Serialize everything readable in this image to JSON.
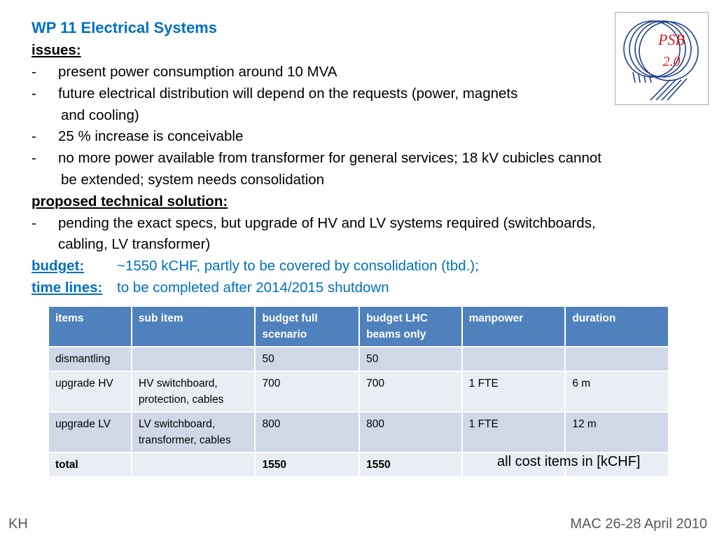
{
  "title": "WP 11 Electrical Systems",
  "issues_label": "issues:",
  "issues": [
    {
      "bullet": "-",
      "text": "present power consumption around 10 MVA"
    },
    {
      "bullet": "-",
      "text": "future electrical distribution will depend on the requests (power, magnets",
      "cont": "and cooling)"
    },
    {
      "bullet": "-",
      "text": "25 % increase is conceivable"
    },
    {
      "bullet": "-",
      "text": "no more power available from transformer for general services; 18 kV cubicles cannot",
      "cont": "be extended; system needs consolidation"
    }
  ],
  "solution_label": "proposed technical solution:",
  "solution": {
    "bullet": "-",
    "text": "pending the exact specs, but upgrade of HV and LV systems required (switchboards,",
    "cont": "cabling, LV transformer)"
  },
  "budget_label": "budget:",
  "budget_text": "~1550 kCHF, partly to be covered by consolidation (tbd.);",
  "timelines_label": "time lines:",
  "timelines_text": "to be completed after 2014/2015 shutdown",
  "logo": {
    "text1": "PSB",
    "text2": "2.0"
  },
  "table": {
    "headers": [
      "items",
      "sub item",
      "budget full scenario",
      "budget LHC beams only",
      "manpower",
      "duration"
    ],
    "rows": [
      [
        "dismantling",
        "",
        "50",
        "50",
        "",
        ""
      ],
      [
        "upgrade HV",
        "HV switchboard, protection, cables",
        "700",
        "700",
        "1 FTE",
        "6 m"
      ],
      [
        "upgrade LV",
        "LV switchboard, transformer, cables",
        "800",
        "800",
        "1 FTE",
        "12 m"
      ],
      [
        "total",
        "",
        "1550",
        "1550",
        "",
        ""
      ]
    ]
  },
  "note": "all cost items in [kCHF]",
  "footer_left": "KH",
  "footer_right": "MAC 26-28 April 2010",
  "colors": {
    "accent": "#0070c0",
    "header": "#4f81bd",
    "row_dark": "#d0d8e8",
    "row_light": "#e9edf4"
  }
}
